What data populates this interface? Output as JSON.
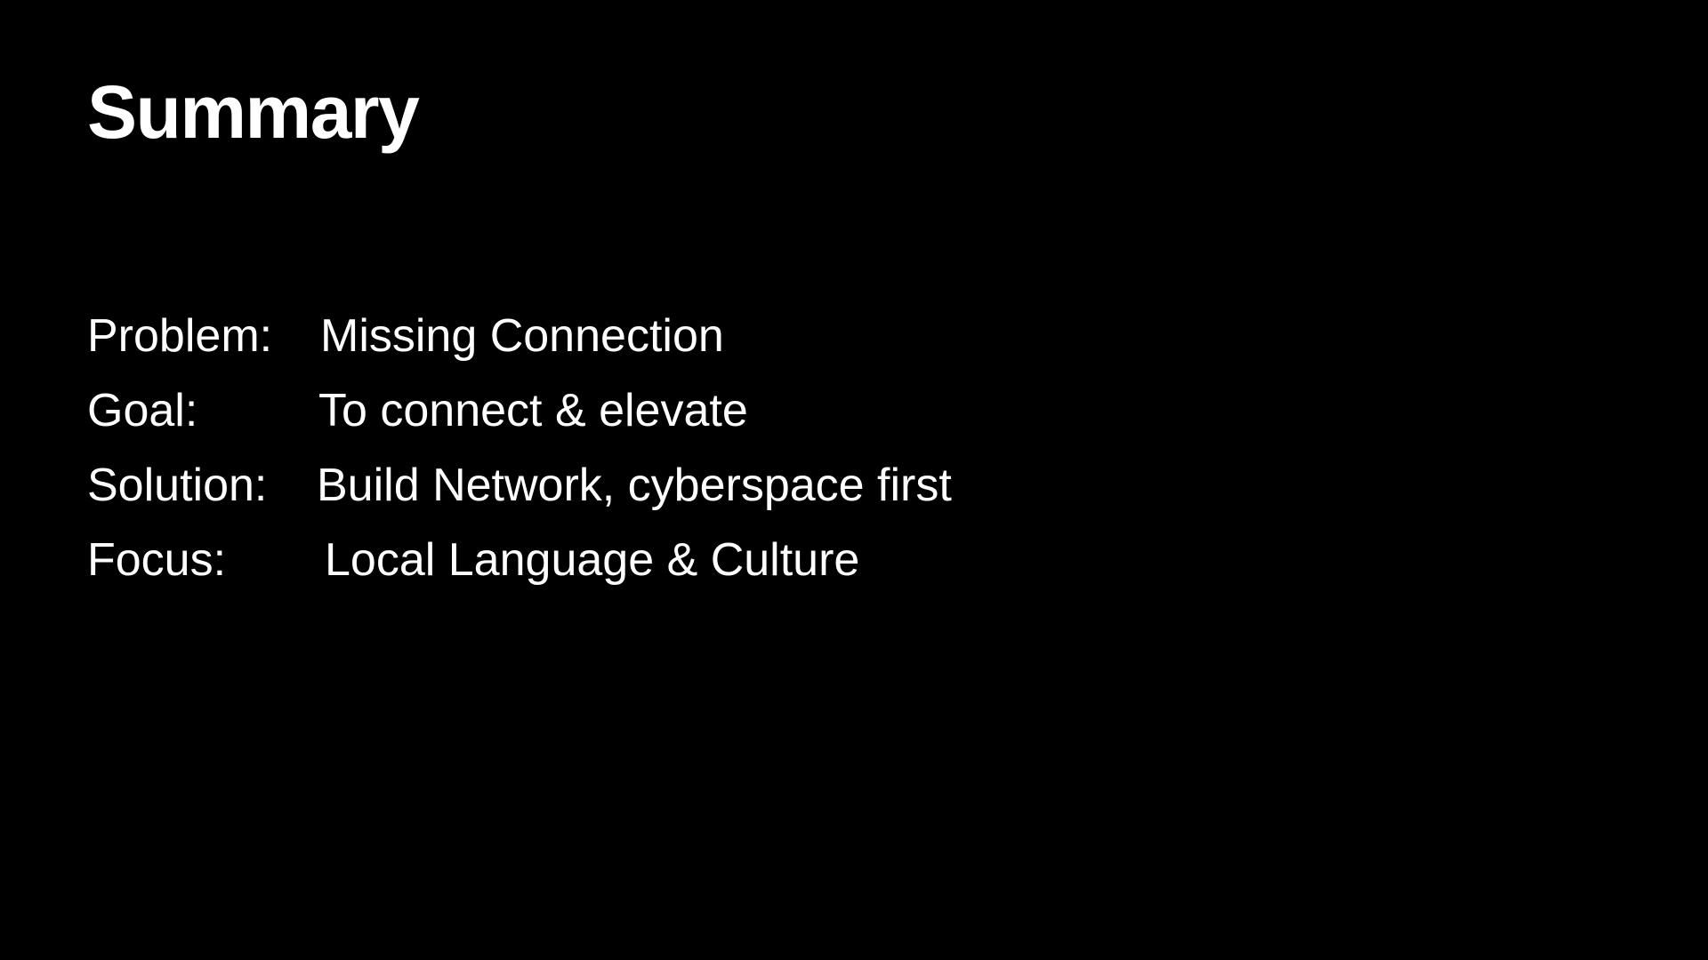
{
  "slide": {
    "title": "Summary",
    "background_color": "#000000",
    "text_color": "#ffffff",
    "rows": [
      {
        "label": "Problem:",
        "value": "Missing Connection"
      },
      {
        "label": "Goal:",
        "value": "To connect & elevate"
      },
      {
        "label": "Solution:",
        "value": "Build Network, cyberspace first"
      },
      {
        "label": "Focus:",
        "value": "Local Language & Culture"
      }
    ]
  }
}
